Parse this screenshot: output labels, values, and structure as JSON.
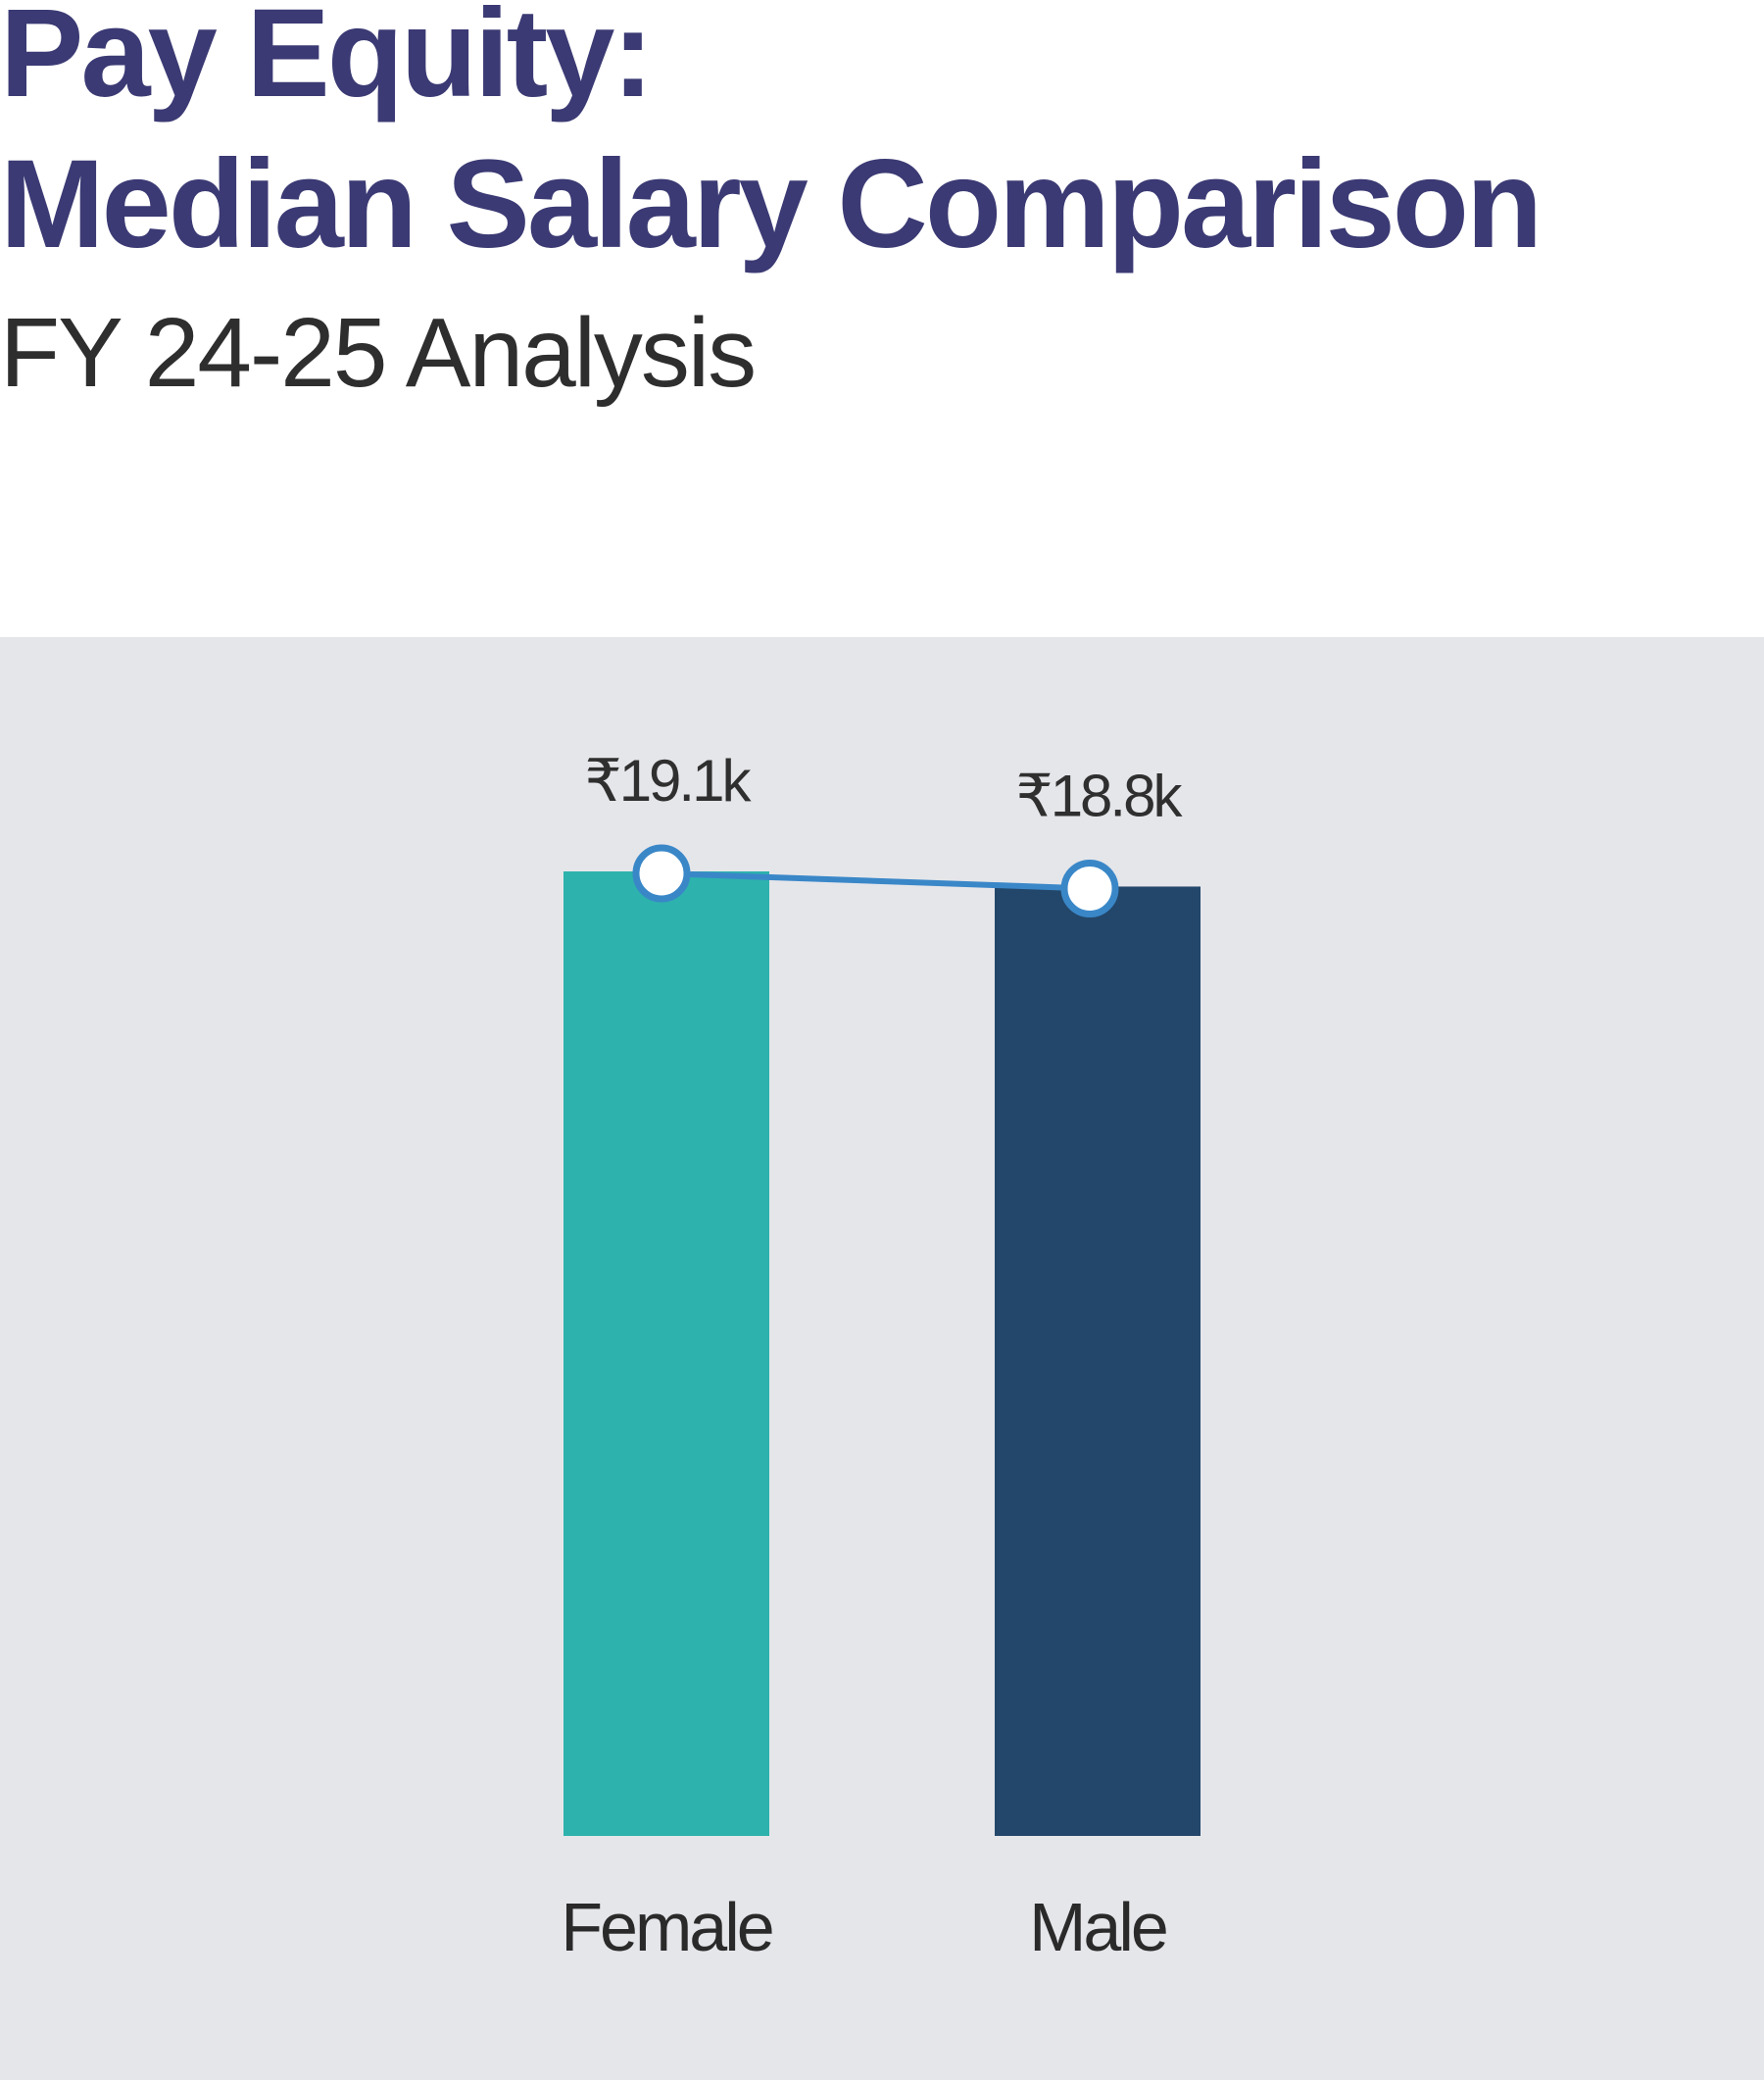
{
  "header": {
    "title_line1": "Pay Equity:",
    "title_line2": "Median Salary Comparison",
    "subtitle": "FY 24-25 Analysis"
  },
  "colors": {
    "title": "#3b3a74",
    "panel_background": "#e5e6ea",
    "female_bar": "#2db2ad",
    "male_bar": "#23476a",
    "connector_line": "#3a87c8",
    "marker_fill": "#ffffff"
  },
  "chart_data": {
    "type": "bar",
    "categories": [
      "Female",
      "Male"
    ],
    "values": [
      19.1,
      18.8
    ],
    "value_labels": [
      "₹19.1k",
      "₹18.8k"
    ],
    "unit": "₹ thousands",
    "bar_colors": [
      "#2db2ad",
      "#23476a"
    ],
    "overlay": "line connecting bar tops with circular markers",
    "title": "",
    "xlabel": "",
    "ylabel": "",
    "ylim": [
      0,
      19.1
    ],
    "grid": false,
    "legend": "none"
  }
}
